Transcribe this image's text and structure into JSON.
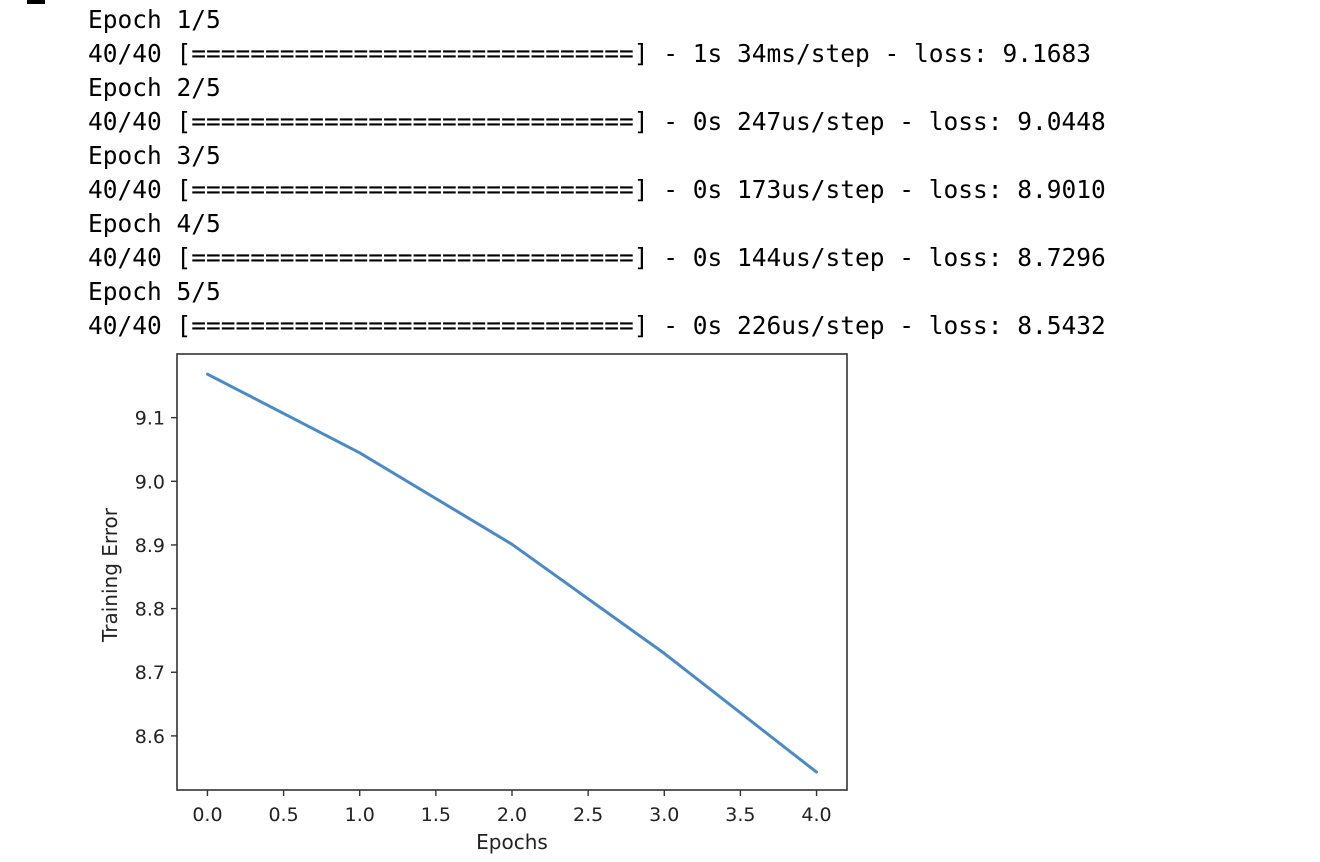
{
  "log_lines": [
    "Epoch 1/5",
    "40/40 [==============================] - 1s 34ms/step - loss: 9.1683",
    "Epoch 2/5",
    "40/40 [==============================] - 0s 247us/step - loss: 9.0448",
    "Epoch 3/5",
    "40/40 [==============================] - 0s 173us/step - loss: 8.9010",
    "Epoch 4/5",
    "40/40 [==============================] - 0s 144us/step - loss: 8.7296",
    "Epoch 5/5",
    "40/40 [==============================] - 0s 226us/step - loss: 8.5432"
  ],
  "chart_data": {
    "type": "line",
    "title": "",
    "xlabel": "Epochs",
    "ylabel": "Training Error",
    "x": [
      0,
      1,
      2,
      3,
      4
    ],
    "series": [
      {
        "values": [
          9.1683,
          9.0448,
          8.901,
          8.7296,
          8.5432
        ],
        "color": "#4c8ac6"
      }
    ],
    "xlim": [
      -0.2,
      4.2
    ],
    "ylim": [
      8.515,
      9.2
    ],
    "xticks": [
      0.0,
      0.5,
      1.0,
      1.5,
      2.0,
      2.5,
      3.0,
      3.5,
      4.0
    ],
    "xtick_labels": [
      "0.0",
      "0.5",
      "1.0",
      "1.5",
      "2.0",
      "2.5",
      "3.0",
      "3.5",
      "4.0"
    ],
    "yticks": [
      8.6,
      8.7,
      8.8,
      8.9,
      9.0,
      9.1
    ],
    "ytick_labels": [
      "8.6",
      "8.7",
      "8.8",
      "8.9",
      "9.0",
      "9.1"
    ],
    "grid": false,
    "legend": false
  }
}
